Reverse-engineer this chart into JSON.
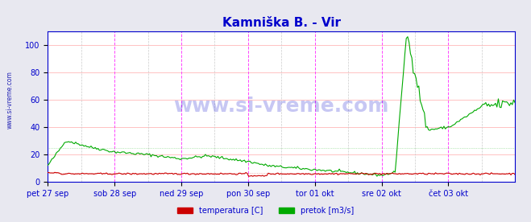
{
  "title": "Kamniška B. - Vir",
  "title_color": "#0000cc",
  "title_fontsize": 11,
  "bg_color": "#e8e8f0",
  "plot_bg_color": "#ffffff",
  "watermark": "www.si-vreme.com",
  "watermark_color": "#0000cc",
  "ylim": [
    0,
    110
  ],
  "yticks": [
    0,
    20,
    40,
    60,
    80,
    100
  ],
  "ylabel_color": "#0000cc",
  "grid_color_h": "#ffaaaa",
  "grid_color_v_major": "#ff44ff",
  "grid_color_v_minor": "#cccccc",
  "temp_color": "#cc0000",
  "flow_color": "#00aa00",
  "legend_temp_color": "#cc0000",
  "legend_flow_color": "#00aa00",
  "legend_temp_label": "temperatura [C]",
  "legend_flow_label": "pretok [m3/s]",
  "x_tick_labels": [
    "pet 27 sep",
    "sob 28 sep",
    "ned 29 sep",
    "pon 30 sep",
    "tor 01 okt",
    "sre 02 okt",
    "čet 03 okt"
  ],
  "n_points": 336,
  "sidebar_color": "#0000aa",
  "sidebar_text": "www.si-vreme.com"
}
